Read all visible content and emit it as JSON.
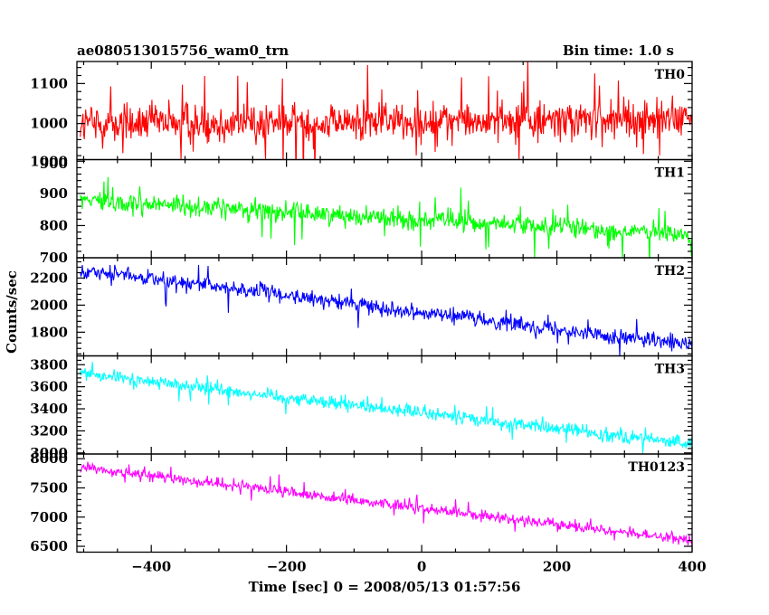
{
  "header": {
    "title": "ae080513015756_wam0_trn",
    "bin_time": "Bin time: 1.0 s"
  },
  "chart_data": {
    "type": "line",
    "x_label": "Time [sec] 0 = 2008/05/13 01:57:56",
    "y_label": "Counts/sec",
    "x_range": [
      -510,
      400
    ],
    "x_ticks": [
      -400,
      -200,
      0,
      200,
      400
    ],
    "x_tick_labels": [
      "−400",
      "−200",
      "0",
      "200",
      "400"
    ],
    "panels": [
      {
        "name": "TH0",
        "color": "#ff0000",
        "y_range": [
          910,
          1155
        ],
        "y_ticks": [
          1100,
          1000,
          900
        ],
        "y_tick_labels": [
          "1100",
          "1000",
          "900"
        ],
        "trend": [
          [
            -505,
            1000
          ],
          [
            400,
            1010
          ]
        ],
        "noise": 45,
        "spike_prob": 0.05,
        "spike_amp": 80
      },
      {
        "name": "TH1",
        "color": "#00ff00",
        "y_range": [
          700,
          1005
        ],
        "y_ticks": [
          1000,
          900,
          800,
          700
        ],
        "y_tick_labels": [
          "1000",
          "900",
          "800",
          "700"
        ],
        "trend": [
          [
            -505,
            880
          ],
          [
            400,
            770
          ]
        ],
        "noise": 28,
        "spike_prob": 0.04,
        "spike_amp": 60
      },
      {
        "name": "TH2",
        "color": "#0000ff",
        "y_range": [
          1625,
          2350
        ],
        "y_ticks": [
          2200,
          2000,
          1800
        ],
        "y_tick_labels": [
          "2200",
          "2000",
          "1800"
        ],
        "trend": [
          [
            -505,
            2260
          ],
          [
            400,
            1700
          ]
        ],
        "noise": 50,
        "spike_prob": 0.03,
        "spike_amp": 80
      },
      {
        "name": "TH3",
        "color": "#00ffff",
        "y_range": [
          2990,
          3880
        ],
        "y_ticks": [
          3800,
          3600,
          3400,
          3200,
          3000
        ],
        "y_tick_labels": [
          "3800",
          "3600",
          "3400",
          "3200",
          "3000"
        ],
        "trend": [
          [
            -505,
            3720
          ],
          [
            400,
            3080
          ]
        ],
        "noise": 55,
        "spike_prob": 0.03,
        "spike_amp": 100
      },
      {
        "name": "TH0123",
        "color": "#ff00ff",
        "y_range": [
          6400,
          8080
        ],
        "y_ticks": [
          8000,
          7500,
          7000,
          6500
        ],
        "y_tick_labels": [
          "8000",
          "7500",
          "7000",
          "6500"
        ],
        "trend": [
          [
            -505,
            7850
          ],
          [
            400,
            6600
          ]
        ],
        "noise": 80,
        "spike_prob": 0.03,
        "spike_amp": 150
      }
    ]
  }
}
